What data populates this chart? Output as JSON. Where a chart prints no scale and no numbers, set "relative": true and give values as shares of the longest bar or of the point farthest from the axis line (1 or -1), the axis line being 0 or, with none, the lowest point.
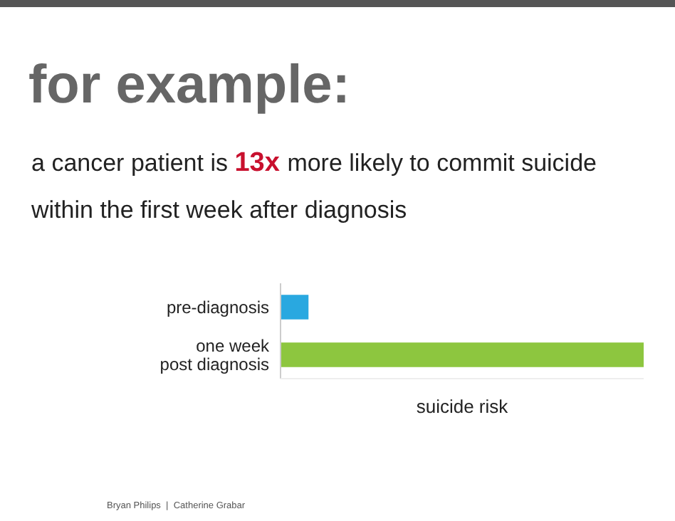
{
  "chart_data": {
    "type": "bar",
    "orientation": "horizontal",
    "relative": true,
    "title": "for example:",
    "subtitle": "a cancer patient is 13x more likely to commit suicide within the first week after diagnosis",
    "categories": [
      "pre-diagnosis",
      "one week\npost diagnosis"
    ],
    "values": [
      0.077,
      1
    ],
    "colors": [
      "#29a8e0",
      "#8dc63f"
    ],
    "xlabel": "suicide risk",
    "annotations": [
      "Bryan Philips  |  Catherine Grabar"
    ]
  }
}
